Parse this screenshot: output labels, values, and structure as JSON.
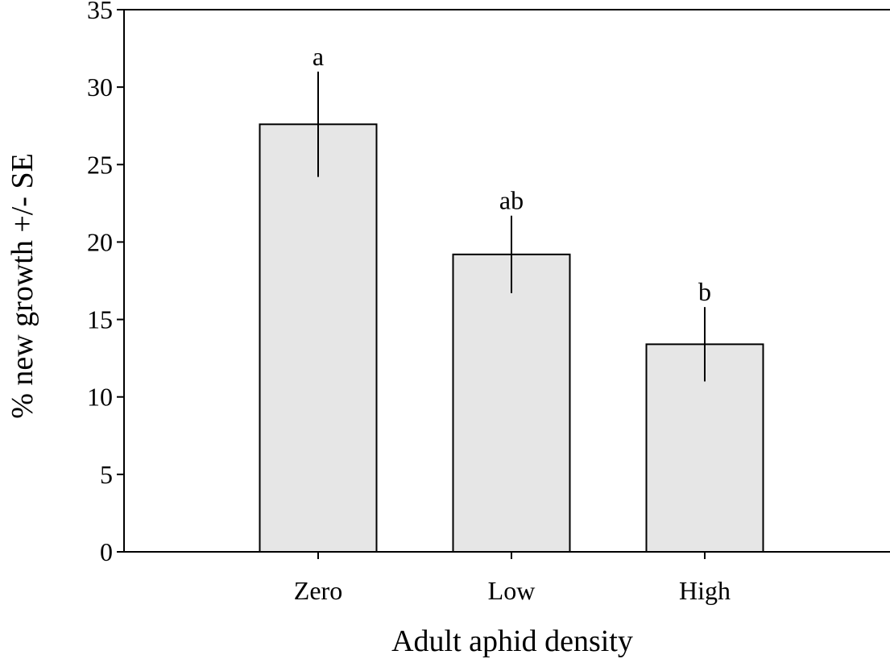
{
  "chart_data": {
    "type": "bar",
    "title": "",
    "xlabel": "Adult aphid density",
    "ylabel": "% new growth +/- SE",
    "categories": [
      "Zero",
      "Low",
      "High"
    ],
    "values": [
      27.6,
      19.2,
      13.4
    ],
    "error": [
      3.4,
      2.5,
      2.4
    ],
    "significance_letters": [
      "a",
      "ab",
      "b"
    ],
    "ylim": [
      0,
      35
    ],
    "yticks": [
      0,
      5,
      10,
      15,
      20,
      25,
      30,
      35
    ],
    "grid": false,
    "legend": "none",
    "bar_color": "#e6e6e6",
    "edge_color": "#000000"
  }
}
